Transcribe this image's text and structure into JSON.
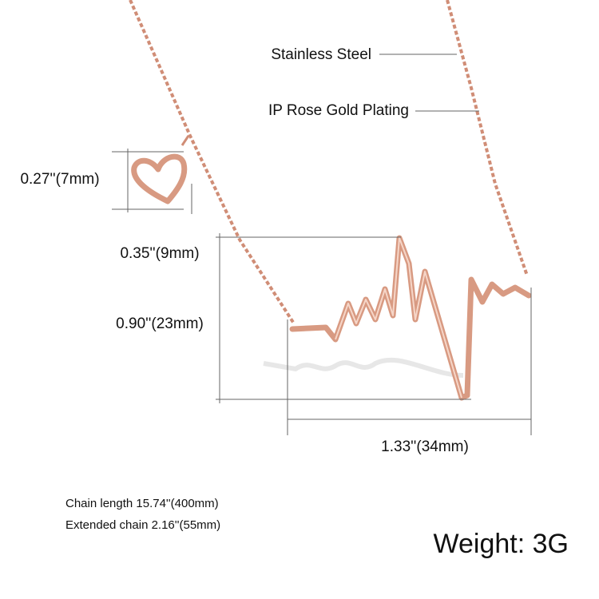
{
  "callouts": [
    "Stainless Steel",
    "IP Rose Gold Plating"
  ],
  "dimensions": {
    "heart_height": "0.27''(7mm)",
    "heart_width": "0.35''(9mm)",
    "pendant_height": "0.90''(23mm)",
    "pendant_width": "1.33''(34mm)"
  },
  "specs": [
    "Chain length 15.74''(400mm)",
    "Extended chain 2.16''(55mm)"
  ],
  "weight": "Weight: 3G"
}
